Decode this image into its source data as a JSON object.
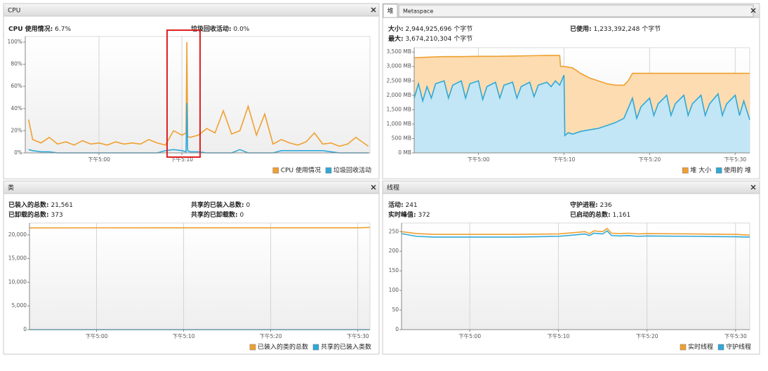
{
  "panels": [
    {
      "title": "CPU",
      "info": [
        {
          "label": "CPU 使用情况:",
          "value": "6.7%"
        },
        {
          "label": "垃圾回收活动:",
          "value": "0.0%"
        }
      ]
    },
    {
      "tabs": [
        "堆",
        "Metaspace"
      ],
      "info": [
        {
          "label": "大小:",
          "value": "2,944,925,696 个字节"
        },
        {
          "label": "已使用:",
          "value": "1,233,392,248 个字节"
        },
        {
          "label": "最大:",
          "value": "3,674,210,304 个字节"
        }
      ]
    },
    {
      "title": "类",
      "info": [
        {
          "label": "已装入的总数:",
          "value": "21,561"
        },
        {
          "label": "共享的已装入总数:",
          "value": "0"
        },
        {
          "label": "已卸载的总数:",
          "value": "373"
        },
        {
          "label": "共享的已卸载数:",
          "value": "0"
        }
      ]
    },
    {
      "title": "线程",
      "info": [
        {
          "label": "活动:",
          "value": "241"
        },
        {
          "label": "守护进程:",
          "value": "236"
        },
        {
          "label": "实时峰值:",
          "value": "372"
        },
        {
          "label": "已启动的总数:",
          "value": "1,161"
        }
      ]
    }
  ],
  "chart_data": [
    {
      "type": "line",
      "xlim": [
        -8.9,
        32.7
      ],
      "ylim": [
        0,
        105
      ],
      "xticks": [
        {
          "value": 0,
          "label": "下午5:00"
        },
        {
          "value": 10,
          "label": "下午5:10"
        }
      ],
      "yticks": [
        {
          "value": 0,
          "label": "0%"
        },
        {
          "value": 20,
          "label": "20%"
        },
        {
          "value": 40,
          "label": "40%"
        },
        {
          "value": 60,
          "label": "60%"
        },
        {
          "value": 80,
          "label": "80%"
        },
        {
          "value": 100,
          "label": "100%"
        }
      ],
      "grid": "x",
      "series": [
        {
          "name": "CPU 使用情况",
          "color": "#f0a030",
          "x": [
            -8.5,
            -8,
            -7,
            -6,
            -5,
            -4,
            -3,
            -2,
            -1,
            0,
            1,
            2,
            3,
            4,
            5,
            6,
            7,
            8,
            9,
            10,
            10.5,
            10.6,
            10.7,
            11,
            12,
            13,
            14,
            15,
            16,
            17,
            18,
            19,
            20,
            21,
            22,
            23,
            24,
            25,
            26,
            27,
            28,
            29,
            30,
            31,
            32.5
          ],
          "values": [
            30,
            12,
            9,
            14,
            8,
            10,
            7,
            11,
            8,
            9,
            7,
            10,
            8,
            9,
            8,
            12,
            9,
            7,
            20,
            16,
            18,
            100,
            15,
            14,
            16,
            22,
            18,
            38,
            17,
            20,
            42,
            16,
            35,
            8,
            12,
            9,
            7,
            10,
            18,
            8,
            9,
            6,
            8,
            14,
            6
          ]
        },
        {
          "name": "垃圾回收活动",
          "color": "#30a8d8",
          "x": [
            -8.5,
            -8,
            -7,
            -6,
            -5,
            -4,
            -3,
            -2,
            -1,
            0,
            1,
            2,
            3,
            4,
            5,
            6,
            7,
            8,
            9,
            10,
            10.5,
            10.6,
            10.7,
            11,
            12,
            13,
            14,
            15,
            16,
            17,
            18,
            19,
            20,
            21,
            22,
            23,
            24,
            25,
            26,
            27,
            28,
            29,
            30,
            31,
            32.5
          ],
          "values": [
            3,
            2,
            1,
            1,
            0,
            0,
            0,
            0,
            0,
            0,
            0,
            0,
            0,
            0,
            0,
            0,
            0,
            2,
            3,
            2,
            1,
            45,
            2,
            1,
            1,
            0,
            0,
            0,
            0,
            3,
            0,
            0,
            0,
            0,
            2,
            2,
            2,
            2,
            2,
            2,
            1,
            0,
            0,
            0,
            0
          ]
        }
      ]
    },
    {
      "type": "area",
      "xlim": [
        -7.5,
        31.7
      ],
      "ylim": [
        0,
        3650
      ],
      "xticks": [
        {
          "value": 0,
          "label": "下午5:00"
        },
        {
          "value": 10,
          "label": "下午5:10"
        },
        {
          "value": 20,
          "label": "下午5:20"
        },
        {
          "value": 30,
          "label": "下午5:30"
        }
      ],
      "yticks": [
        {
          "value": 0,
          "label": "0 MB"
        },
        {
          "value": 500,
          "label": "500 MB"
        },
        {
          "value": 1000,
          "label": "1,000 MB"
        },
        {
          "value": 1500,
          "label": "1,500 MB"
        },
        {
          "value": 2000,
          "label": "2,000 MB"
        },
        {
          "value": 2500,
          "label": "2,500 MB"
        },
        {
          "value": 3000,
          "label": "3,000 MB"
        },
        {
          "value": 3500,
          "label": "3,500 MB"
        }
      ],
      "grid": "x",
      "series": [
        {
          "name": "堆 大小",
          "color": "#f0a030",
          "fill": "#fcdcb0",
          "x": [
            -7.5,
            -6,
            -4,
            -2,
            0,
            2,
            4,
            6,
            8,
            9.5,
            9.6,
            10,
            11,
            12,
            13,
            14,
            15,
            16,
            17,
            17.5,
            18,
            20,
            22,
            24,
            26,
            28,
            30,
            31.7
          ],
          "values": [
            3300,
            3320,
            3340,
            3340,
            3350,
            3350,
            3360,
            3370,
            3380,
            3380,
            3000,
            3000,
            2950,
            2750,
            2600,
            2500,
            2400,
            2350,
            2350,
            2500,
            2760,
            2760,
            2760,
            2760,
            2760,
            2760,
            2760,
            2760
          ]
        },
        {
          "name": "使用的 堆",
          "color": "#30a8d8",
          "fill": "#c2e6f5",
          "x": [
            -7.5,
            -7,
            -6.5,
            -6,
            -5.5,
            -5,
            -4,
            -3.5,
            -3,
            -2,
            -1.5,
            -1,
            0,
            0.5,
            1,
            2,
            2.5,
            3,
            4,
            4.5,
            5,
            6,
            6.5,
            7,
            8,
            8.5,
            9,
            9.5,
            10,
            10.1,
            10.5,
            11,
            12,
            13,
            14,
            15,
            16,
            17,
            18,
            18.5,
            19,
            20,
            20.5,
            21,
            22,
            22.5,
            23,
            24,
            24.5,
            25,
            26,
            26.5,
            27,
            28,
            28.5,
            29,
            30,
            30.5,
            31,
            31.7
          ],
          "values": [
            1900,
            2400,
            1800,
            2300,
            1900,
            2400,
            2500,
            1900,
            2350,
            2500,
            1900,
            2400,
            2500,
            1850,
            2300,
            2450,
            1900,
            2350,
            2450,
            1900,
            2300,
            2450,
            1950,
            2350,
            2450,
            2300,
            2500,
            2350,
            2700,
            600,
            700,
            650,
            750,
            800,
            850,
            950,
            1050,
            1200,
            1900,
            1200,
            1600,
            1900,
            1300,
            1700,
            2000,
            1300,
            1700,
            2000,
            1300,
            1700,
            2000,
            1300,
            1700,
            2050,
            1300,
            1700,
            2000,
            1300,
            1800,
            1150
          ]
        }
      ]
    },
    {
      "type": "line",
      "xlim": [
        -7.7,
        31.4
      ],
      "ylim": [
        0,
        22500
      ],
      "xticks": [
        {
          "value": 0,
          "label": "下午5:00"
        },
        {
          "value": 10,
          "label": "下午5:10"
        },
        {
          "value": 20,
          "label": "下午5:20"
        },
        {
          "value": 30,
          "label": "下午5:30"
        }
      ],
      "yticks": [
        0,
        {
          "value": 5000,
          "label": "5,000"
        },
        {
          "value": 10000,
          "label": "10,000"
        },
        {
          "value": 15000,
          "label": "15,000"
        },
        {
          "value": 20000,
          "label": "20,000"
        }
      ],
      "grid": "x",
      "series": [
        {
          "name": "已装入的类的总数",
          "color": "#f0a030",
          "x": [
            -7.7,
            30,
            31.4
          ],
          "values": [
            21480,
            21500,
            21561
          ]
        },
        {
          "name": "共享的已装入类数",
          "color": "#30a8d8",
          "x": [
            -7.7,
            30,
            31.4
          ],
          "values": [
            0,
            0,
            0
          ]
        }
      ]
    },
    {
      "type": "line",
      "xlim": [
        -7.7,
        31.6
      ],
      "ylim": [
        0,
        272
      ],
      "xticks": [
        {
          "value": 0,
          "label": "下午5:00"
        },
        {
          "value": 10,
          "label": "下午5:10"
        },
        {
          "value": 20,
          "label": "下午5:20"
        },
        {
          "value": 30,
          "label": "下午5:30"
        }
      ],
      "yticks": [
        0,
        50,
        100,
        150,
        200,
        250
      ],
      "grid": "x",
      "series": [
        {
          "name": "实时线程",
          "color": "#f0a030",
          "x": [
            -7.7,
            -6,
            -4,
            0,
            5,
            10,
            12,
            13,
            13.5,
            14,
            15,
            15.5,
            16,
            17,
            18,
            19,
            20,
            25,
            30,
            31.6
          ],
          "values": [
            250,
            245,
            243,
            243,
            243,
            244,
            248,
            250,
            245,
            252,
            250,
            258,
            246,
            245,
            246,
            244,
            245,
            244,
            243,
            241
          ]
        },
        {
          "name": "守护线程",
          "color": "#30a8d8",
          "x": [
            -7.7,
            -6,
            -4,
            0,
            5,
            10,
            12,
            13,
            13.5,
            14,
            15,
            15.5,
            16,
            17,
            18,
            19,
            20,
            25,
            30,
            31.6
          ],
          "values": [
            245,
            238,
            236,
            236,
            236,
            238,
            242,
            244,
            240,
            246,
            244,
            252,
            240,
            239,
            240,
            238,
            239,
            238,
            237,
            236
          ]
        }
      ]
    }
  ]
}
